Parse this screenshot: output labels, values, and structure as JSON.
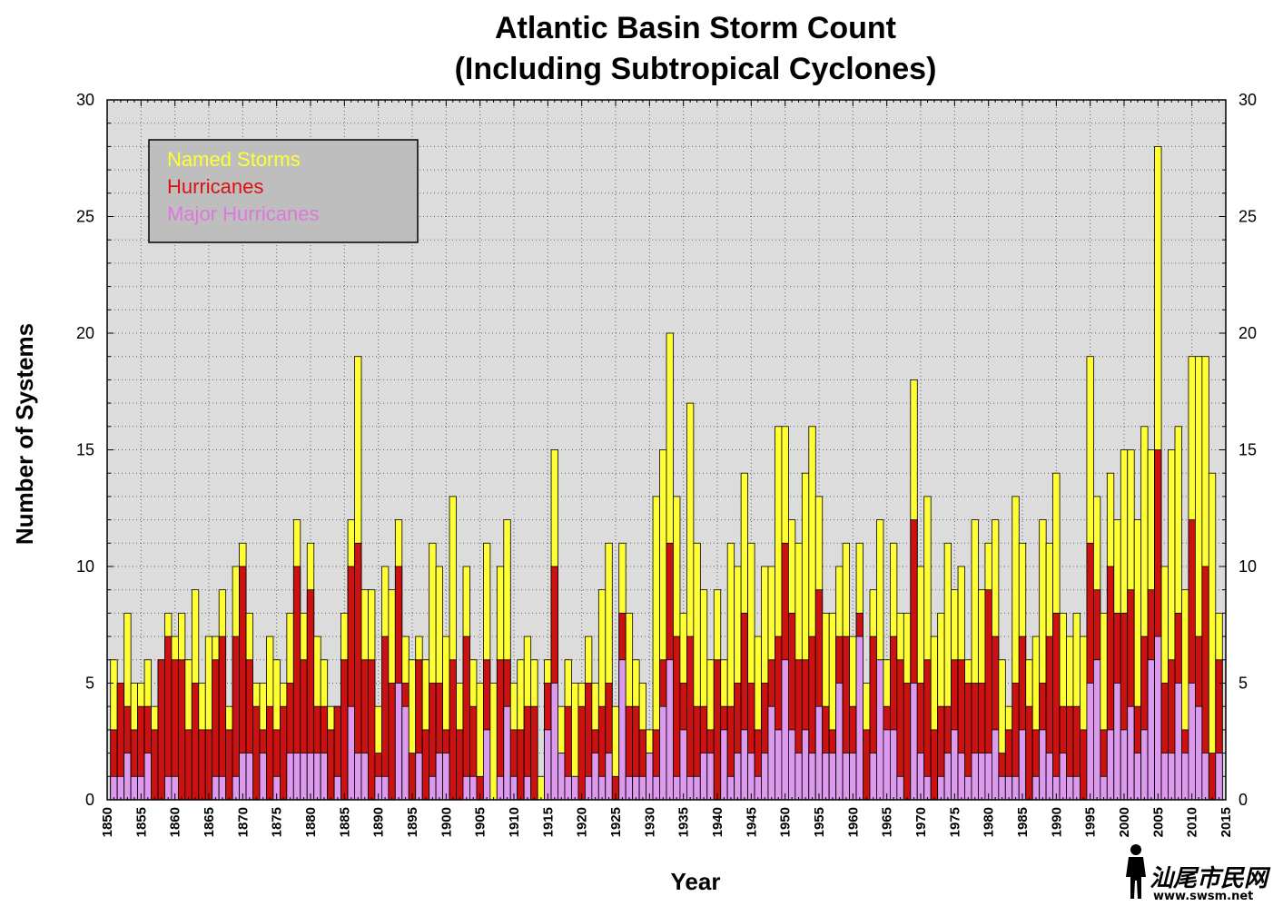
{
  "chart_data": {
    "type": "bar",
    "title": "Atlantic Basin Storm Count",
    "subtitle": "(Including Subtropical Cyclones)",
    "xlabel": "Year",
    "ylabel": "Number of Systems",
    "xlim": [
      1850,
      2015
    ],
    "ylim": [
      0,
      30
    ],
    "yticks": [
      0,
      5,
      10,
      15,
      20,
      25,
      30
    ],
    "xticks": [
      1850,
      1855,
      1860,
      1865,
      1870,
      1875,
      1880,
      1885,
      1890,
      1895,
      1900,
      1905,
      1910,
      1915,
      1920,
      1925,
      1930,
      1935,
      1940,
      1945,
      1950,
      1955,
      1960,
      1965,
      1970,
      1975,
      1980,
      1985,
      1990,
      1995,
      2000,
      2005,
      2010,
      2015
    ],
    "grid": true,
    "legend_position": "top-left",
    "colors": {
      "named_storms": "#ffff33",
      "hurricanes": "#cc1111",
      "major_hurricanes": "#dd99ee",
      "plot_background": "#dcdcdc",
      "legend_background": "#bebebe"
    },
    "categories": [
      1851,
      1852,
      1853,
      1854,
      1855,
      1856,
      1857,
      1858,
      1859,
      1860,
      1861,
      1862,
      1863,
      1864,
      1865,
      1866,
      1867,
      1868,
      1869,
      1870,
      1871,
      1872,
      1873,
      1874,
      1875,
      1876,
      1877,
      1878,
      1879,
      1880,
      1881,
      1882,
      1883,
      1884,
      1885,
      1886,
      1887,
      1888,
      1889,
      1890,
      1891,
      1892,
      1893,
      1894,
      1895,
      1896,
      1897,
      1898,
      1899,
      1900,
      1901,
      1902,
      1903,
      1904,
      1905,
      1906,
      1907,
      1908,
      1909,
      1910,
      1911,
      1912,
      1913,
      1914,
      1915,
      1916,
      1917,
      1918,
      1919,
      1920,
      1921,
      1922,
      1923,
      1924,
      1925,
      1926,
      1927,
      1928,
      1929,
      1930,
      1931,
      1932,
      1933,
      1934,
      1935,
      1936,
      1937,
      1938,
      1939,
      1940,
      1941,
      1942,
      1943,
      1944,
      1945,
      1946,
      1947,
      1948,
      1949,
      1950,
      1951,
      1952,
      1953,
      1954,
      1955,
      1956,
      1957,
      1958,
      1959,
      1960,
      1961,
      1962,
      1963,
      1964,
      1965,
      1966,
      1967,
      1968,
      1969,
      1970,
      1971,
      1972,
      1973,
      1974,
      1975,
      1976,
      1977,
      1978,
      1979,
      1980,
      1981,
      1982,
      1983,
      1984,
      1985,
      1986,
      1987,
      1988,
      1989,
      1990,
      1991,
      1992,
      1993,
      1994,
      1995,
      1996,
      1997,
      1998,
      1999,
      2000,
      2001,
      2002,
      2003,
      2004,
      2005,
      2006,
      2007,
      2008,
      2009,
      2010,
      2011,
      2012,
      2013,
      2014
    ],
    "series": [
      {
        "name": "Named Storms",
        "values": [
          6,
          5,
          8,
          5,
          5,
          6,
          4,
          6,
          8,
          7,
          8,
          6,
          9,
          5,
          7,
          7,
          9,
          4,
          10,
          11,
          8,
          5,
          5,
          7,
          6,
          5,
          8,
          12,
          8,
          11,
          7,
          6,
          4,
          4,
          8,
          12,
          19,
          9,
          9,
          4,
          10,
          9,
          12,
          7,
          6,
          7,
          6,
          11,
          10,
          7,
          13,
          5,
          10,
          6,
          5,
          11,
          5,
          10,
          12,
          5,
          6,
          7,
          6,
          1,
          6,
          15,
          4,
          6,
          5,
          5,
          7,
          5,
          9,
          11,
          4,
          11,
          8,
          6,
          5,
          3,
          13,
          15,
          20,
          13,
          8,
          17,
          11,
          9,
          6,
          9,
          6,
          11,
          10,
          14,
          11,
          7,
          10,
          10,
          16,
          16,
          12,
          11,
          14,
          16,
          13,
          8,
          8,
          10,
          11,
          7,
          11,
          5,
          9,
          12,
          6,
          11,
          8,
          8,
          18,
          10,
          13,
          7,
          8,
          11,
          9,
          10,
          6,
          12,
          9,
          11,
          12,
          6,
          4,
          13,
          11,
          6,
          7,
          12,
          11,
          14,
          8,
          7,
          8,
          7,
          19,
          13,
          8,
          14,
          12,
          15,
          15,
          12,
          16,
          15,
          28,
          10,
          15,
          16,
          9,
          19,
          19,
          19,
          14,
          8
        ]
      },
      {
        "name": "Hurricanes",
        "values": [
          3,
          5,
          4,
          3,
          4,
          4,
          3,
          6,
          7,
          6,
          6,
          3,
          5,
          3,
          3,
          6,
          7,
          3,
          7,
          10,
          6,
          4,
          3,
          4,
          3,
          4,
          5,
          10,
          6,
          9,
          4,
          4,
          3,
          4,
          6,
          10,
          11,
          6,
          6,
          2,
          7,
          5,
          10,
          5,
          2,
          6,
          3,
          5,
          5,
          3,
          6,
          3,
          7,
          4,
          1,
          6,
          0,
          6,
          6,
          3,
          3,
          4,
          4,
          0,
          5,
          10,
          2,
          4,
          1,
          4,
          5,
          3,
          4,
          5,
          1,
          8,
          4,
          4,
          3,
          2,
          3,
          6,
          11,
          7,
          5,
          7,
          4,
          4,
          3,
          6,
          4,
          4,
          5,
          8,
          5,
          3,
          5,
          6,
          7,
          11,
          8,
          6,
          6,
          7,
          9,
          4,
          3,
          7,
          7,
          4,
          8,
          3,
          7,
          6,
          4,
          7,
          6,
          5,
          12,
          5,
          6,
          3,
          4,
          4,
          6,
          6,
          5,
          5,
          5,
          9,
          7,
          2,
          3,
          5,
          7,
          4,
          3,
          5,
          7,
          8,
          4,
          4,
          4,
          3,
          11,
          9,
          3,
          10,
          8,
          8,
          9,
          4,
          7,
          9,
          15,
          5,
          6,
          8,
          3,
          12,
          7,
          10,
          2,
          6
        ]
      },
      {
        "name": "Major Hurricanes",
        "values": [
          1,
          1,
          2,
          1,
          1,
          2,
          0,
          0,
          1,
          1,
          0,
          0,
          0,
          0,
          0,
          1,
          1,
          0,
          1,
          2,
          2,
          0,
          2,
          0,
          1,
          0,
          2,
          2,
          2,
          2,
          2,
          2,
          0,
          1,
          0,
          4,
          2,
          2,
          0,
          1,
          1,
          0,
          5,
          4,
          0,
          2,
          0,
          1,
          2,
          2,
          0,
          0,
          1,
          1,
          0,
          3,
          0,
          1,
          4,
          1,
          0,
          1,
          0,
          0,
          3,
          5,
          2,
          1,
          1,
          0,
          1,
          2,
          1,
          2,
          0,
          6,
          1,
          1,
          1,
          2,
          1,
          4,
          6,
          1,
          3,
          1,
          1,
          2,
          2,
          0,
          3,
          1,
          2,
          3,
          2,
          1,
          2,
          4,
          3,
          6,
          3,
          2,
          3,
          2,
          4,
          2,
          2,
          5,
          2,
          2,
          7,
          0,
          2,
          6,
          3,
          3,
          1,
          0,
          5,
          2,
          1,
          0,
          1,
          2,
          3,
          2,
          1,
          2,
          2,
          2,
          3,
          1,
          1,
          1,
          3,
          0,
          1,
          3,
          2,
          1,
          2,
          1,
          1,
          0,
          5,
          6,
          1,
          3,
          5,
          3,
          4,
          2,
          3,
          6,
          7,
          2,
          2,
          5,
          2,
          5,
          4,
          2,
          0,
          2
        ]
      }
    ],
    "legend": [
      "Named Storms",
      "Hurricanes",
      "Major Hurricanes"
    ]
  },
  "watermark": {
    "text": "汕尾市民网",
    "url": "www.swsm.net",
    "icon": "standing-figure-icon"
  }
}
